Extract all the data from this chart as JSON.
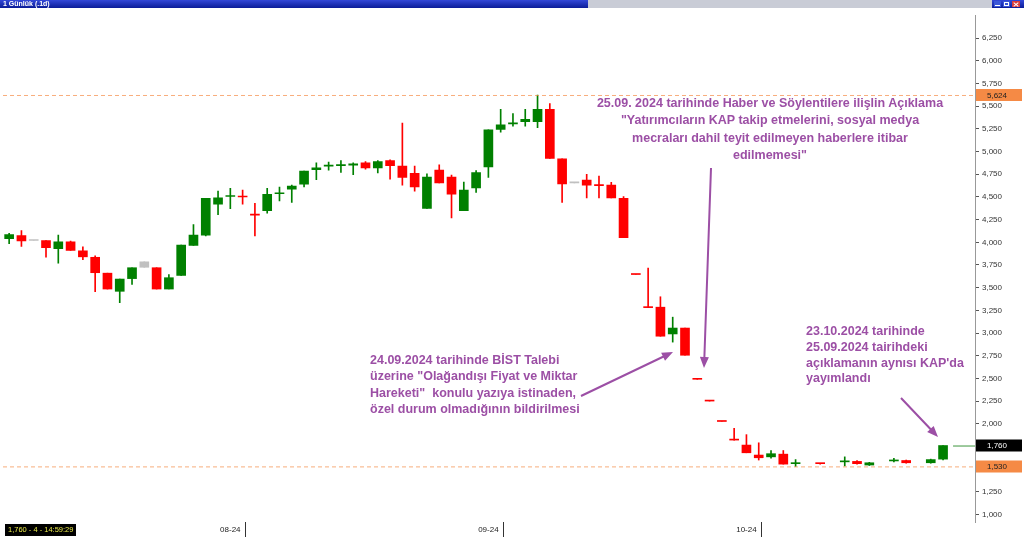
{
  "chart_data": {
    "type": "candlestick",
    "title": "1 Günlük (.1d)",
    "categories": [
      null,
      null,
      null,
      null,
      null,
      null,
      null,
      null,
      null,
      null,
      null,
      null,
      null,
      null,
      null,
      null,
      null,
      null,
      "08-24",
      null,
      null,
      null,
      null,
      null,
      null,
      null,
      null,
      null,
      null,
      null,
      null,
      null,
      null,
      null,
      null,
      null,
      null,
      null,
      null,
      "09-24",
      null,
      null,
      null,
      null,
      null,
      null,
      null,
      null,
      null,
      null,
      null,
      null,
      null,
      null,
      null,
      null,
      null,
      null,
      null,
      null,
      "10-24",
      null,
      null,
      null,
      null,
      null,
      null,
      null,
      null,
      null,
      null,
      null,
      null,
      null,
      null,
      null,
      null
    ],
    "ohlc": [
      [
        4040,
        4100,
        3985,
        4085
      ],
      [
        4075,
        4130,
        3955,
        4015
      ],
      [
        4020,
        4020,
        4020,
        4020
      ],
      [
        4020,
        4020,
        3835,
        3940
      ],
      [
        3930,
        4080,
        3770,
        4005
      ],
      [
        4005,
        4015,
        3910,
        3910
      ],
      [
        3905,
        3950,
        3810,
        3840
      ],
      [
        3835,
        3850,
        3455,
        3665
      ],
      [
        3660,
        3660,
        3485,
        3485
      ],
      [
        3460,
        3595,
        3335,
        3595
      ],
      [
        3600,
        3720,
        3535,
        3720
      ],
      [
        3785,
        3785,
        3725,
        3725
      ],
      [
        3720,
        3720,
        3485,
        3485
      ],
      [
        3485,
        3645,
        3485,
        3610
      ],
      [
        3635,
        3970,
        3635,
        3970
      ],
      [
        3965,
        4195,
        3965,
        4080
      ],
      [
        4080,
        4485,
        4070,
        4485
      ],
      [
        4420,
        4565,
        4305,
        4490
      ],
      [
        4505,
        4595,
        4370,
        4510
      ],
      [
        4505,
        4575,
        4420,
        4500
      ],
      [
        4310,
        4430,
        4070,
        4300
      ],
      [
        4350,
        4595,
        4320,
        4530
      ],
      [
        4535,
        4610,
        4455,
        4540
      ],
      [
        4585,
        4630,
        4440,
        4620
      ],
      [
        4640,
        4785,
        4610,
        4785
      ],
      [
        4800,
        4875,
        4690,
        4820
      ],
      [
        4840,
        4885,
        4795,
        4845
      ],
      [
        4845,
        4900,
        4770,
        4850
      ],
      [
        4850,
        4875,
        4745,
        4865
      ],
      [
        4875,
        4890,
        4805,
        4820
      ],
      [
        4820,
        4900,
        4765,
        4890
      ],
      [
        4900,
        4910,
        4695,
        4845
      ],
      [
        4840,
        5315,
        4630,
        4715
      ],
      [
        4760,
        4840,
        4565,
        4610
      ],
      [
        4375,
        4755,
        4375,
        4720
      ],
      [
        4795,
        4855,
        4655,
        4655
      ],
      [
        4720,
        4740,
        4270,
        4530
      ],
      [
        4350,
        4665,
        4350,
        4575
      ],
      [
        4600,
        4790,
        4550,
        4770
      ],
      [
        4830,
        5240,
        4715,
        5240
      ],
      [
        5245,
        5465,
        5215,
        5295
      ],
      [
        5305,
        5420,
        5280,
        5310
      ],
      [
        5330,
        5465,
        5280,
        5355
      ],
      [
        5330,
        5624,
        5265,
        5465
      ],
      [
        5465,
        5530,
        4925,
        4925
      ],
      [
        4920,
        4920,
        4440,
        4645
      ],
      [
        4655,
        4655,
        4655,
        4655
      ],
      [
        4685,
        4750,
        4490,
        4630
      ],
      [
        4630,
        4730,
        4490,
        4625
      ],
      [
        4630,
        4660,
        4490,
        4490
      ],
      [
        4485,
        4505,
        4050,
        4050
      ],
      [
        3645,
        3645,
        3645,
        3645
      ],
      [
        3280,
        3715,
        3280,
        3280
      ],
      [
        3285,
        3400,
        2965,
        2965
      ],
      [
        2990,
        3175,
        2900,
        3055
      ],
      [
        3055,
        3055,
        2755,
        2755
      ],
      [
        2490,
        2490,
        2490,
        2490
      ],
      [
        2250,
        2250,
        2250,
        2250
      ],
      [
        2025,
        2025,
        2025,
        2025
      ],
      [
        1820,
        1950,
        1820,
        1820
      ],
      [
        1765,
        1880,
        1680,
        1680
      ],
      [
        1655,
        1790,
        1600,
        1625
      ],
      [
        1635,
        1705,
        1620,
        1670
      ],
      [
        1665,
        1705,
        1555,
        1555
      ],
      [
        1560,
        1605,
        1530,
        1565
      ],
      null,
      [
        1565,
        1565,
        1555,
        1560
      ],
      null,
      [
        1580,
        1635,
        1535,
        1580
      ],
      [
        1585,
        1595,
        1555,
        1560
      ],
      [
        1545,
        1575,
        1540,
        1570
      ],
      null,
      [
        1590,
        1620,
        1580,
        1595
      ],
      [
        1595,
        1600,
        1565,
        1570
      ],
      null,
      [
        1570,
        1610,
        1565,
        1605
      ],
      [
        1610,
        1760,
        1600,
        1760
      ]
    ],
    "colors": [
      "#008000",
      "#ff0000",
      "#c0c0c0",
      "#ff0000",
      "#008000",
      "#ff0000",
      "#ff0000",
      "#ff0000",
      "#ff0000",
      "#008000",
      "#008000",
      "#c0c0c0",
      "#ff0000",
      "#008000",
      "#008000",
      "#008000",
      "#008000",
      "#008000",
      "#008000",
      "#ff0000",
      "#ff0000",
      "#008000",
      "#008000",
      "#008000",
      "#008000",
      "#008000",
      "#008000",
      "#008000",
      "#008000",
      "#ff0000",
      "#008000",
      "#ff0000",
      "#ff0000",
      "#ff0000",
      "#008000",
      "#ff0000",
      "#ff0000",
      "#008000",
      "#008000",
      "#008000",
      "#008000",
      "#008000",
      "#008000",
      "#008000",
      "#ff0000",
      "#ff0000",
      "#c0c0c0",
      "#ff0000",
      "#ff0000",
      "#ff0000",
      "#ff0000",
      "#ff0000",
      "#ff0000",
      "#ff0000",
      "#008000",
      "#ff0000",
      "#ff0000",
      "#ff0000",
      "#ff0000",
      "#ff0000",
      "#ff0000",
      "#ff0000",
      "#008000",
      "#ff0000",
      "#008000",
      null,
      "#ff0000",
      null,
      "#008000",
      "#ff0000",
      "#008000",
      null,
      "#008000",
      "#ff0000",
      null,
      "#008000",
      "#008000"
    ],
    "ylim": [
      917,
      6497
    ],
    "yticks": [
      {
        "value": 1000,
        "label": "1,000"
      },
      {
        "value": 1250,
        "label": "1,250"
      },
      {
        "value": 2000,
        "label": "2,000"
      },
      {
        "value": 2250,
        "label": "2,250"
      },
      {
        "value": 2500,
        "label": "2,500"
      },
      {
        "value": 2750,
        "label": "2,750"
      },
      {
        "value": 3000,
        "label": "3,000"
      },
      {
        "value": 3250,
        "label": "3,250"
      },
      {
        "value": 3500,
        "label": "3,500"
      },
      {
        "value": 3750,
        "label": "3,750"
      },
      {
        "value": 4000,
        "label": "4,000"
      },
      {
        "value": 4250,
        "label": "4,250"
      },
      {
        "value": 4500,
        "label": "4,500"
      },
      {
        "value": 4750,
        "label": "4,750"
      },
      {
        "value": 5000,
        "label": "5,000"
      },
      {
        "value": 5250,
        "label": "5,250"
      },
      {
        "value": 5500,
        "label": "5,500"
      },
      {
        "value": 5750,
        "label": "5,750"
      },
      {
        "value": 6000,
        "label": "6,000"
      },
      {
        "value": 6250,
        "label": "6,250"
      }
    ],
    "ref_lines": [
      {
        "axis": "y",
        "value": 5624,
        "label": "5,624",
        "color": "#f58a45",
        "line_style": "dashed"
      },
      {
        "axis": "y",
        "value": 1530,
        "label": "1,530",
        "color": "#f58a45",
        "line_style": "dashed"
      },
      {
        "axis": "y",
        "value": 1760,
        "label": "1,760",
        "color": "#3c963c",
        "line_style": "solid"
      }
    ],
    "annotations": [
      "25.09. 2024 tarihinde Haber ve Söylentilere ilişlin Açıklama\n\"Yatırımcıların KAP takip etmelerini, sosyal medya\nmecraları dahil teyit edilmeyen haberlere itibar\nedilmemesi\"",
      "24.09.2024 tarihinde BİST Talebi\nüzerine \"Olağandışı Fiyat ve Miktar\nHareketi\"  konulu yazıya istinaden,\nözel durum olmadığının bildirilmesi",
      "23.10.2024 tarihinde\n25.09.2024 tairihdeki\naçıklamanın aynısı KAP'da\nyayımlandı",
      "1,760 - 4 - 14:59:29"
    ]
  }
}
